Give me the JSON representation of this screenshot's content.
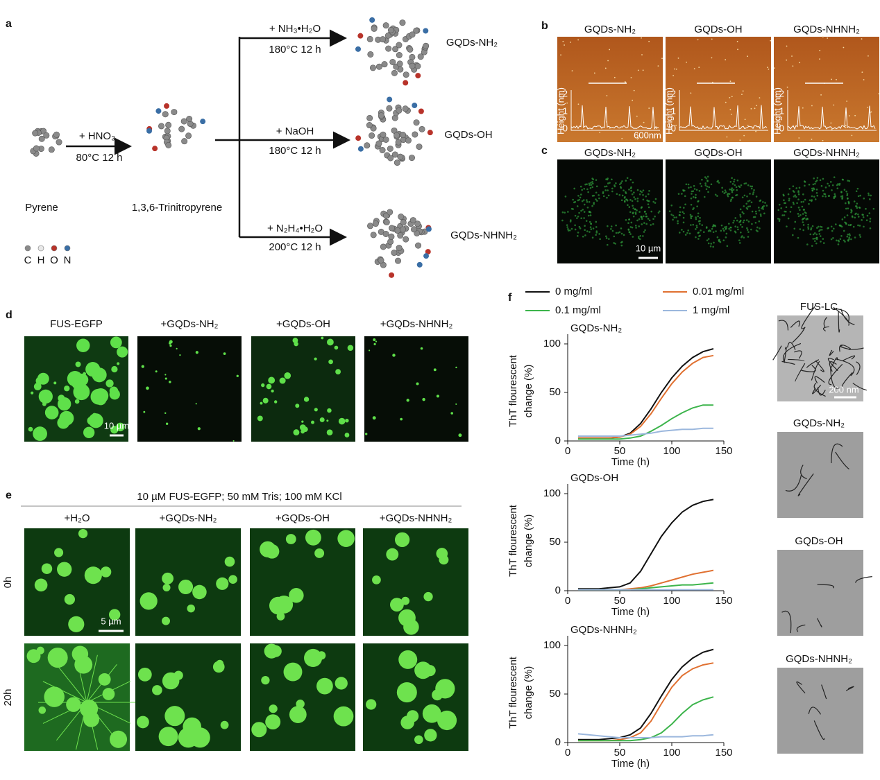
{
  "scheme": {
    "label": "a",
    "pyrene": "Pyrene",
    "trinitropyrene": "1,3,6-Trinitropyrene",
    "step1": {
      "reagent": "+ HNO₃",
      "condition": "80°C 12 h"
    },
    "routes": [
      {
        "reagent": "+ NH₃•H₂O",
        "condition": "180°C 12 h",
        "product": "GQDs-NH₂"
      },
      {
        "reagent": "+  NaOH",
        "condition": "180°C 12 h",
        "product": "GQDs-OH"
      },
      {
        "reagent": "+  N₂H₄•H₂O",
        "condition": "200°C 12 h",
        "product": "GQDs-NHNH₂"
      }
    ],
    "atoms": [
      "C",
      "H",
      "O",
      "N"
    ]
  },
  "afm": {
    "label": "b",
    "titles": [
      "GQDs-NH₂",
      "GQDs-OH",
      "GQDs-NHNH₂"
    ],
    "y_label": "Height (nm)",
    "height_ticks": [
      0,
      1,
      2
    ],
    "scale": "600nm"
  },
  "confocal": {
    "label": "c",
    "titles": [
      "GQDs-NH₂",
      "GQDs-OH",
      "GQDs-NHNH₂"
    ],
    "scale": "10 µm"
  },
  "droplets": {
    "label": "d",
    "titles": [
      "FUS-EGFP",
      "+GQDs-NH₂",
      "+GQDs-OH",
      "+GQDs-NHNH₂"
    ],
    "scale": "10 µm"
  },
  "timecourse": {
    "label": "e",
    "condition": "10 µM FUS-EGFP; 50 mM Tris; 100 mM KCl",
    "columns": [
      "+H₂O",
      "+GQDs-NH₂",
      "+GQDs-OH",
      "+GQDs-NHNH₂"
    ],
    "rows": [
      "0h",
      "20h"
    ],
    "scale": "5 µm"
  },
  "kinetics_label": "f",
  "tem": {
    "titles": [
      "FUS-LC",
      "GQDs-NH₂",
      "GQDs-OH",
      "GQDs-NHNH₂"
    ],
    "scale": "200 nm"
  },
  "chart_data": [
    {
      "type": "line",
      "title": "GQDs-NH₂",
      "xlabel": "Time (h)",
      "ylabel": [
        "ThT flourescent",
        "change (%)"
      ],
      "x": [
        10,
        20,
        30,
        40,
        50,
        60,
        70,
        80,
        90,
        100,
        110,
        120,
        130,
        140
      ],
      "xlim": [
        0,
        150
      ],
      "ylim": [
        0,
        110
      ],
      "xticks": [
        0,
        50,
        100,
        150
      ],
      "yticks": [
        0,
        50,
        100
      ],
      "series": [
        {
          "name": "0 mg/ml",
          "color": "#111111",
          "values": [
            3,
            3,
            3,
            3,
            4,
            8,
            18,
            33,
            50,
            65,
            77,
            86,
            92,
            95
          ]
        },
        {
          "name": "0.01 mg/ml",
          "color": "#e07030",
          "values": [
            3,
            3,
            3,
            3,
            4,
            7,
            15,
            28,
            44,
            59,
            71,
            80,
            86,
            88
          ]
        },
        {
          "name": "0.1 mg/ml",
          "color": "#3cb44b",
          "values": [
            2,
            2,
            2,
            2,
            2,
            3,
            5,
            10,
            16,
            23,
            29,
            34,
            37,
            37
          ]
        },
        {
          "name": "1 mg/ml",
          "color": "#9bb7dd",
          "values": [
            5,
            5,
            5,
            5,
            5,
            6,
            7,
            8,
            10,
            11,
            12,
            12,
            13,
            13
          ]
        }
      ]
    },
    {
      "type": "line",
      "title": "GQDs-OH",
      "xlabel": "Time (h)",
      "ylabel": [
        "ThT flourescent",
        "change (%)"
      ],
      "x": [
        10,
        20,
        30,
        40,
        50,
        60,
        70,
        80,
        90,
        100,
        110,
        120,
        130,
        140
      ],
      "xlim": [
        0,
        150
      ],
      "ylim": [
        0,
        110
      ],
      "xticks": [
        0,
        50,
        100,
        150
      ],
      "yticks": [
        0,
        50,
        100
      ],
      "series": [
        {
          "color": "#111111",
          "values": [
            2,
            2,
            2,
            3,
            4,
            8,
            20,
            38,
            56,
            70,
            81,
            88,
            92,
            94
          ]
        },
        {
          "color": "#e07030",
          "values": [
            1,
            1,
            1,
            1,
            1,
            2,
            3,
            5,
            8,
            11,
            14,
            17,
            19,
            21
          ]
        },
        {
          "color": "#3cb44b",
          "values": [
            1,
            1,
            1,
            1,
            1,
            1,
            2,
            3,
            4,
            5,
            6,
            6,
            7,
            8
          ]
        },
        {
          "color": "#9bb7dd",
          "values": [
            1,
            1,
            1,
            1,
            1,
            1,
            1,
            1,
            1,
            1,
            1,
            1,
            1,
            1
          ]
        }
      ]
    },
    {
      "type": "line",
      "title": "GQDs-NHNH₂",
      "xlabel": "Time (h)",
      "ylabel": [
        "ThT flourescent",
        "change (%)"
      ],
      "x": [
        10,
        20,
        30,
        40,
        50,
        60,
        70,
        80,
        90,
        100,
        110,
        120,
        130,
        140
      ],
      "xlim": [
        0,
        150
      ],
      "ylim": [
        0,
        110
      ],
      "xticks": [
        0,
        50,
        100,
        150
      ],
      "yticks": [
        0,
        50,
        100
      ],
      "series": [
        {
          "color": "#111111",
          "values": [
            3,
            3,
            3,
            4,
            5,
            8,
            15,
            30,
            48,
            65,
            78,
            87,
            93,
            96
          ]
        },
        {
          "color": "#e07030",
          "values": [
            2,
            2,
            2,
            2,
            3,
            5,
            10,
            22,
            40,
            57,
            69,
            76,
            80,
            82
          ]
        },
        {
          "color": "#3cb44b",
          "values": [
            2,
            2,
            2,
            2,
            2,
            2,
            3,
            5,
            10,
            19,
            30,
            39,
            44,
            47
          ]
        },
        {
          "color": "#9bb7dd",
          "values": [
            9,
            8,
            7,
            6,
            5,
            5,
            5,
            5,
            6,
            6,
            6,
            7,
            7,
            8
          ]
        }
      ]
    }
  ]
}
